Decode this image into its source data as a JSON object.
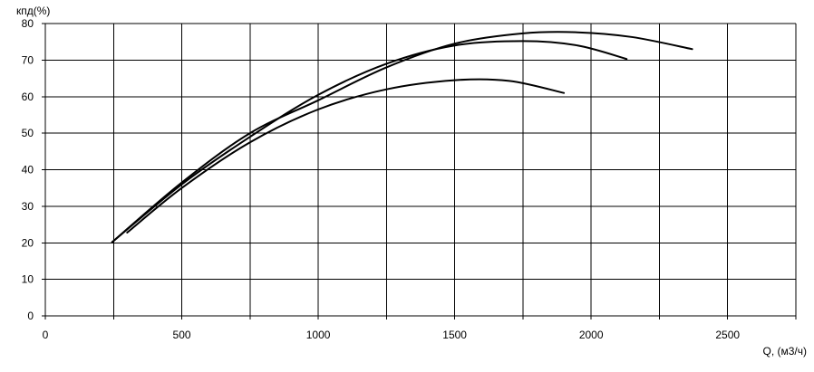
{
  "chart_data": {
    "type": "line",
    "title": "",
    "xlabel": "Q, (м3/ч)",
    "ylabel": "кпд(%)",
    "xlim": [
      0,
      2750
    ],
    "ylim": [
      0,
      80
    ],
    "xticks": [
      0,
      500,
      1000,
      1500,
      2000,
      2500
    ],
    "yticks": [
      0,
      10,
      20,
      30,
      40,
      50,
      60,
      70,
      80
    ],
    "x_gridlines": [
      250,
      500,
      750,
      1000,
      1250,
      1500,
      1750,
      2000,
      2250,
      2500,
      2750
    ],
    "y_gridlines": [
      0,
      10,
      20,
      30,
      40,
      50,
      60,
      70,
      80
    ],
    "grid": true,
    "legend": "none",
    "line_color": "#000000",
    "series": [
      {
        "points": [
          [
            245,
            20.2
          ],
          [
            500,
            36.5
          ],
          [
            750,
            50
          ],
          [
            1000,
            59
          ],
          [
            1250,
            68
          ],
          [
            1500,
            74.5
          ],
          [
            1750,
            77.3
          ],
          [
            1950,
            77.6
          ],
          [
            2150,
            76.3
          ],
          [
            2370,
            73
          ]
        ]
      },
      {
        "points": [
          [
            245,
            20.2
          ],
          [
            500,
            36
          ],
          [
            750,
            49
          ],
          [
            1000,
            60.5
          ],
          [
            1250,
            69
          ],
          [
            1500,
            74
          ],
          [
            1750,
            75.2
          ],
          [
            1950,
            74
          ],
          [
            2130,
            70.3
          ]
        ]
      },
      {
        "points": [
          [
            300,
            22.8
          ],
          [
            500,
            35
          ],
          [
            750,
            47.5
          ],
          [
            1000,
            56.5
          ],
          [
            1250,
            62
          ],
          [
            1500,
            64.5
          ],
          [
            1700,
            64.3
          ],
          [
            1900,
            61
          ]
        ]
      }
    ]
  }
}
